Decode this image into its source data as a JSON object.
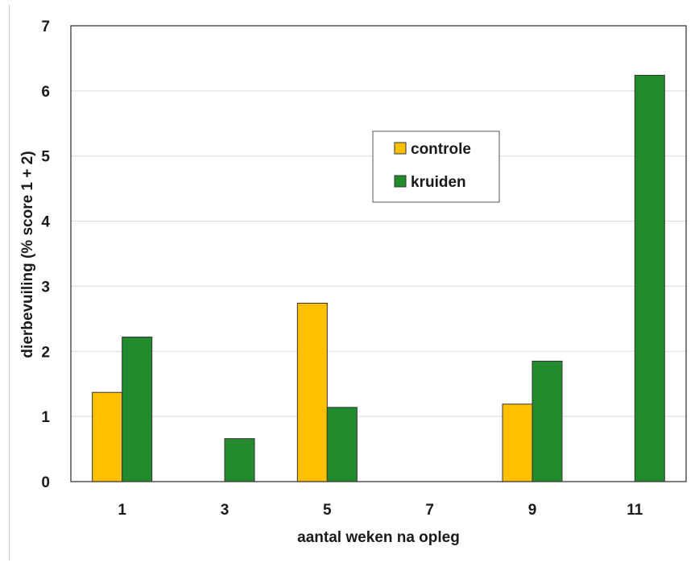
{
  "chart_data": {
    "type": "bar",
    "title": "",
    "xlabel": "aantal weken na opleg",
    "ylabel": "dierbevuiling (% score 1 + 2)",
    "categories": [
      "1",
      "3",
      "5",
      "7",
      "9",
      "11"
    ],
    "ylim": [
      0,
      7
    ],
    "yticks": [
      "0",
      "1",
      "2",
      "3",
      "4",
      "5",
      "6",
      "7"
    ],
    "grid": true,
    "legend_position": "center",
    "series": [
      {
        "name": "controle",
        "color": "#FFC000",
        "values": [
          1.37,
          0,
          2.74,
          0,
          1.19,
          0
        ]
      },
      {
        "name": "kruiden",
        "color": "#228B2E",
        "values": [
          2.22,
          0.66,
          1.14,
          0,
          1.85,
          6.24
        ]
      }
    ]
  }
}
